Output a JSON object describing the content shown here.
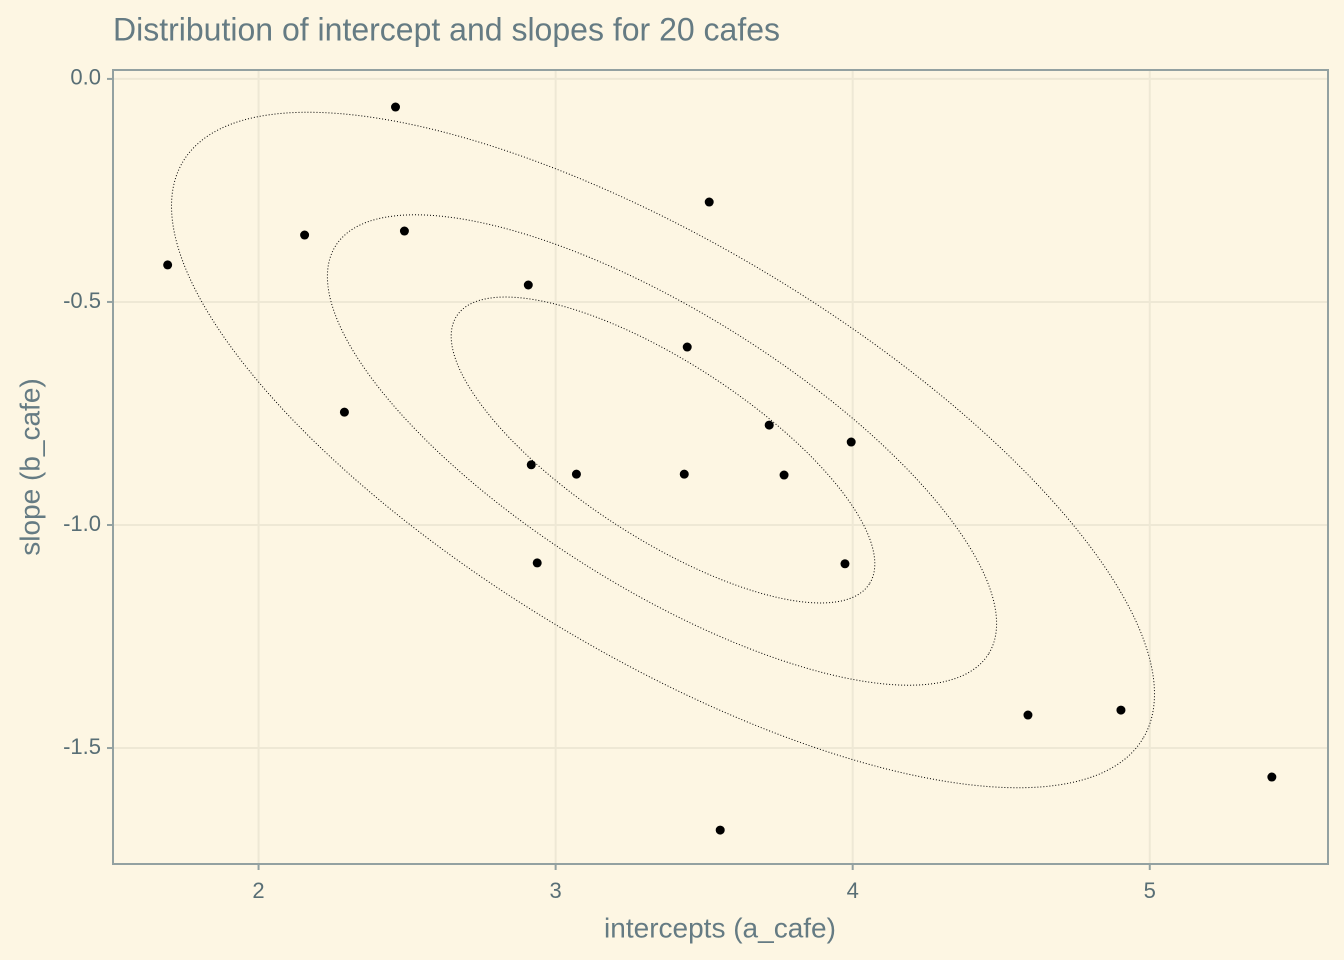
{
  "chart_data": {
    "type": "scatter",
    "title": "Distribution of intercept and slopes for 20 cafes",
    "x_label": "intercepts (a_cafe)",
    "y_label": "slope (b_cafe)",
    "x": [
      1.694,
      2.155,
      2.289,
      2.461,
      2.491,
      2.908,
      2.918,
      2.938,
      3.07,
      3.433,
      3.443,
      3.517,
      3.554,
      3.719,
      3.769,
      3.974,
      3.995,
      4.59,
      4.903,
      5.411
    ],
    "values": [
      -0.417,
      -0.35,
      -0.747,
      -0.063,
      -0.341,
      -0.462,
      -0.865,
      -1.085,
      -0.886,
      -0.886,
      -0.601,
      -0.276,
      -1.684,
      -0.776,
      -0.888,
      -1.087,
      -0.814,
      -1.426,
      -1.415,
      -1.565
    ],
    "color": "#000000",
    "xlim": [
      1.51,
      5.6
    ],
    "ylim": [
      -1.76,
      0.02
    ],
    "xticks": [
      2,
      3,
      4,
      5
    ],
    "yticks": [
      {
        "value": 0,
        "label": "0.0"
      },
      -0.5,
      {
        "value": -1,
        "label": "-1.0"
      },
      -1.5
    ],
    "grid": true
  }
}
